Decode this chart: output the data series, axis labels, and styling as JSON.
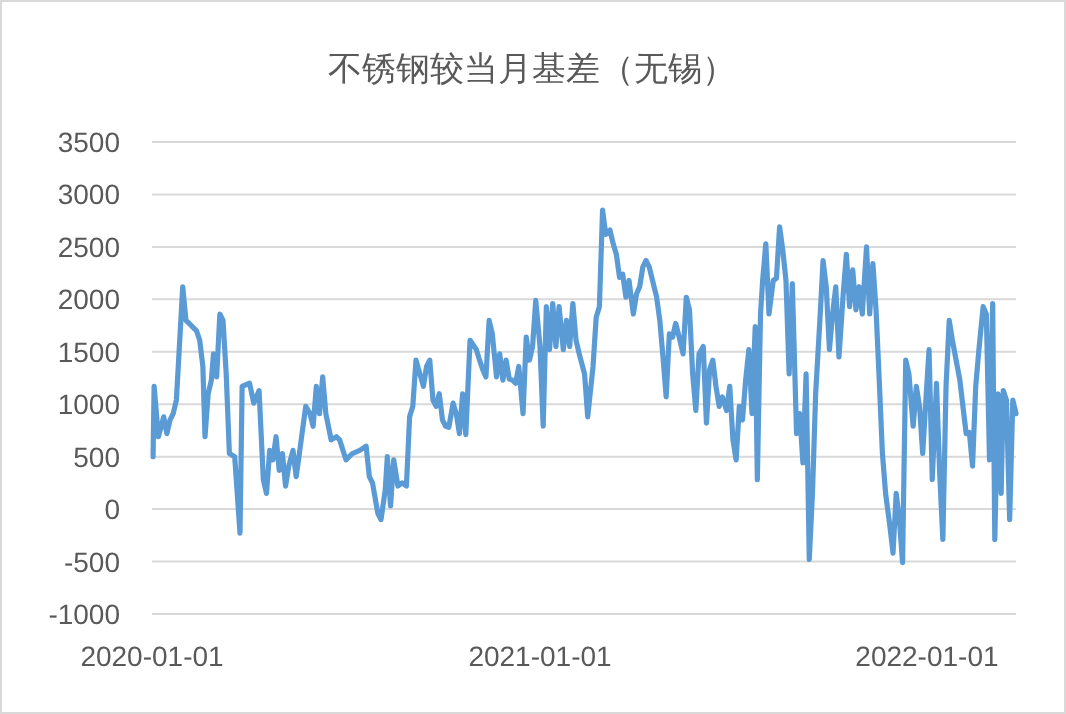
{
  "chart_data": {
    "type": "line",
    "title": "不锈钢较当月基差（无锡）",
    "xlim": [
      "2020-01-01",
      "2022-03-26"
    ],
    "xticks": [
      "2020-01-01",
      "2021-01-01",
      "2022-01-01"
    ],
    "ylim": [
      -1000,
      3500
    ],
    "yticks": [
      -1000,
      -500,
      0,
      500,
      1000,
      1500,
      2000,
      2500,
      3000,
      3500
    ],
    "grid": "y",
    "line_style": "solid",
    "marker": "none",
    "x": [
      "2020-01-02",
      "2020-01-03",
      "2020-01-07",
      "2020-01-12",
      "2020-01-15",
      "2020-01-18",
      "2020-01-21",
      "2020-01-24",
      "2020-01-30",
      "2020-02-02",
      "2020-02-05",
      "2020-02-12",
      "2020-02-15",
      "2020-02-18",
      "2020-02-20",
      "2020-02-23",
      "2020-02-26",
      "2020-02-28",
      "2020-03-02",
      "2020-03-05",
      "2020-03-08",
      "2020-03-11",
      "2020-03-14",
      "2020-03-19",
      "2020-03-24",
      "2020-03-26",
      "2020-04-02",
      "2020-04-06",
      "2020-04-11",
      "2020-04-15",
      "2020-04-18",
      "2020-04-21",
      "2020-04-24",
      "2020-04-27",
      "2020-04-30",
      "2020-05-03",
      "2020-05-06",
      "2020-05-09",
      "2020-05-13",
      "2020-05-16",
      "2020-05-19",
      "2020-05-25",
      "2020-05-29",
      "2020-06-01",
      "2020-06-04",
      "2020-06-07",
      "2020-06-10",
      "2020-06-13",
      "2020-06-18",
      "2020-06-23",
      "2020-06-26",
      "2020-07-02",
      "2020-07-08",
      "2020-07-15",
      "2020-07-21",
      "2020-07-24",
      "2020-07-27",
      "2020-08-01",
      "2020-08-04",
      "2020-08-08",
      "2020-08-10",
      "2020-08-13",
      "2020-08-16",
      "2020-08-20",
      "2020-08-24",
      "2020-08-28",
      "2020-08-31",
      "2020-09-03",
      "2020-09-06",
      "2020-09-13",
      "2020-09-16",
      "2020-09-19",
      "2020-09-22",
      "2020-09-25",
      "2020-09-28",
      "2020-10-01",
      "2020-10-04",
      "2020-10-07",
      "2020-10-11",
      "2020-10-14",
      "2020-10-17",
      "2020-10-20",
      "2020-10-23",
      "2020-10-27",
      "2020-11-02",
      "2020-11-05",
      "2020-11-08",
      "2020-11-11",
      "2020-11-14",
      "2020-11-17",
      "2020-11-21",
      "2020-11-24",
      "2020-11-27",
      "2020-11-30",
      "2020-12-03",
      "2020-12-06",
      "2020-12-09",
      "2020-12-12",
      "2020-12-16",
      "2020-12-19",
      "2020-12-22",
      "2020-12-25",
      "2020-12-28",
      "2021-01-01",
      "2021-01-04",
      "2021-01-07",
      "2021-01-10",
      "2021-01-13",
      "2021-01-16",
      "2021-01-19",
      "2021-01-23",
      "2021-01-26",
      "2021-01-29",
      "2021-02-01",
      "2021-02-04",
      "2021-02-07",
      "2021-02-12",
      "2021-02-15",
      "2021-02-20",
      "2021-02-23",
      "2021-02-26",
      "2021-03-01",
      "2021-03-04",
      "2021-03-08",
      "2021-03-11",
      "2021-03-14",
      "2021-03-17",
      "2021-03-20",
      "2021-03-23",
      "2021-03-26",
      "2021-03-30",
      "2021-04-02",
      "2021-04-05",
      "2021-04-08",
      "2021-04-11",
      "2021-04-14",
      "2021-04-21",
      "2021-04-24",
      "2021-04-27",
      "2021-04-30",
      "2021-05-03",
      "2021-05-06",
      "2021-05-09",
      "2021-05-13",
      "2021-05-16",
      "2021-05-19",
      "2021-05-22",
      "2021-05-25",
      "2021-05-28",
      "2021-05-31",
      "2021-06-04",
      "2021-06-07",
      "2021-06-10",
      "2021-06-13",
      "2021-06-16",
      "2021-06-19",
      "2021-06-22",
      "2021-06-26",
      "2021-06-29",
      "2021-07-02",
      "2021-07-05",
      "2021-07-08",
      "2021-07-11",
      "2021-07-14",
      "2021-07-17",
      "2021-07-20",
      "2021-07-23",
      "2021-07-25",
      "2021-07-28",
      "2021-07-30",
      "2021-08-02",
      "2021-08-05",
      "2021-08-09",
      "2021-08-12",
      "2021-08-15",
      "2021-08-18",
      "2021-08-21",
      "2021-08-24",
      "2021-08-27",
      "2021-08-31",
      "2021-09-03",
      "2021-09-06",
      "2021-09-09",
      "2021-09-12",
      "2021-09-15",
      "2021-09-18",
      "2021-09-22",
      "2021-09-25",
      "2021-09-28",
      "2021-10-01",
      "2021-10-04",
      "2021-10-07",
      "2021-10-10",
      "2021-10-14",
      "2021-10-17",
      "2021-10-20",
      "2021-10-23",
      "2021-10-26",
      "2021-10-29",
      "2021-11-01",
      "2021-11-05",
      "2021-11-08",
      "2021-11-11",
      "2021-11-14",
      "2021-11-17",
      "2021-11-20",
      "2021-11-23",
      "2021-11-27",
      "2021-11-30",
      "2021-12-03",
      "2021-12-06",
      "2021-12-09",
      "2021-12-12",
      "2021-12-15",
      "2021-12-19",
      "2021-12-22",
      "2021-12-25",
      "2021-12-28",
      "2021-12-31",
      "2022-01-03",
      "2022-01-06",
      "2022-01-10",
      "2022-01-13",
      "2022-01-16",
      "2022-01-19",
      "2022-01-22",
      "2022-01-25",
      "2022-02-01",
      "2022-02-07",
      "2022-02-10",
      "2022-02-13",
      "2022-02-16",
      "2022-02-19",
      "2022-02-23",
      "2022-02-26",
      "2022-03-01",
      "2022-03-04",
      "2022-03-06",
      "2022-03-09",
      "2022-03-12",
      "2022-03-14",
      "2022-03-17",
      "2022-03-20",
      "2022-03-23",
      "2022-03-26"
    ],
    "series": [
      {
        "color": "#5b9bd5",
        "values": [
          500,
          1170,
          690,
          880,
          720,
          850,
          910,
          1040,
          2120,
          1800,
          1770,
          1700,
          1610,
          1360,
          690,
          1100,
          1230,
          1480,
          1260,
          1860,
          1800,
          1290,
          530,
          500,
          -230,
          1170,
          1200,
          1010,
          1130,
          280,
          150,
          560,
          470,
          690,
          370,
          530,
          220,
          410,
          560,
          310,
          530,
          980,
          910,
          790,
          1170,
          910,
          1260,
          910,
          660,
          690,
          660,
          470,
          530,
          560,
          600,
          310,
          250,
          -40,
          -100,
          180,
          500,
          30,
          470,
          220,
          250,
          220,
          880,
          980,
          1420,
          1170,
          1360,
          1420,
          1040,
          980,
          1100,
          850,
          790,
          780,
          1010,
          910,
          720,
          1100,
          710,
          1610,
          1520,
          1420,
          1330,
          1260,
          1800,
          1670,
          1260,
          1480,
          1230,
          1420,
          1240,
          1230,
          1200,
          1360,
          910,
          1640,
          1420,
          1550,
          1990,
          1550,
          790,
          1930,
          1520,
          1960,
          1550,
          1930,
          1520,
          1800,
          1550,
          1960,
          1610,
          1480,
          1290,
          880,
          1360,
          1830,
          1930,
          2850,
          2620,
          2660,
          2530,
          2430,
          2210,
          2240,
          2020,
          2180,
          1860,
          2050,
          2120,
          2310,
          2370,
          2310,
          2020,
          1800,
          1450,
          1070,
          1670,
          1640,
          1770,
          1610,
          1480,
          2020,
          1900,
          1290,
          940,
          1480,
          1550,
          820,
          1330,
          1420,
          1170,
          980,
          1070,
          940,
          1170,
          660,
          470,
          980,
          850,
          1230,
          1520,
          910,
          1740,
          280,
          1860,
          2180,
          2530,
          1860,
          2180,
          2200,
          2690,
          2470,
          2180,
          1290,
          2150,
          720,
          910,
          440,
          1290,
          -480,
          150,
          1100,
          1800,
          2370,
          2120,
          1520,
          1860,
          2120,
          1450,
          2050,
          2430,
          1930,
          2280,
          1900,
          2120,
          1860,
          2500,
          1860,
          2340,
          1900,
          1230,
          530,
          150,
          -160,
          -420,
          150,
          -100,
          -510,
          1420,
          1290,
          790,
          1170,
          980,
          530,
          1040,
          1520,
          280,
          1200,
          340,
          -290,
          1170,
          1800,
          1610,
          1230,
          720,
          730,
          410,
          1170,
          1520,
          1930,
          1860,
          470,
          1960,
          -290,
          1100,
          150,
          1130,
          1040,
          -100,
          1040,
          910
        ]
      }
    ]
  }
}
